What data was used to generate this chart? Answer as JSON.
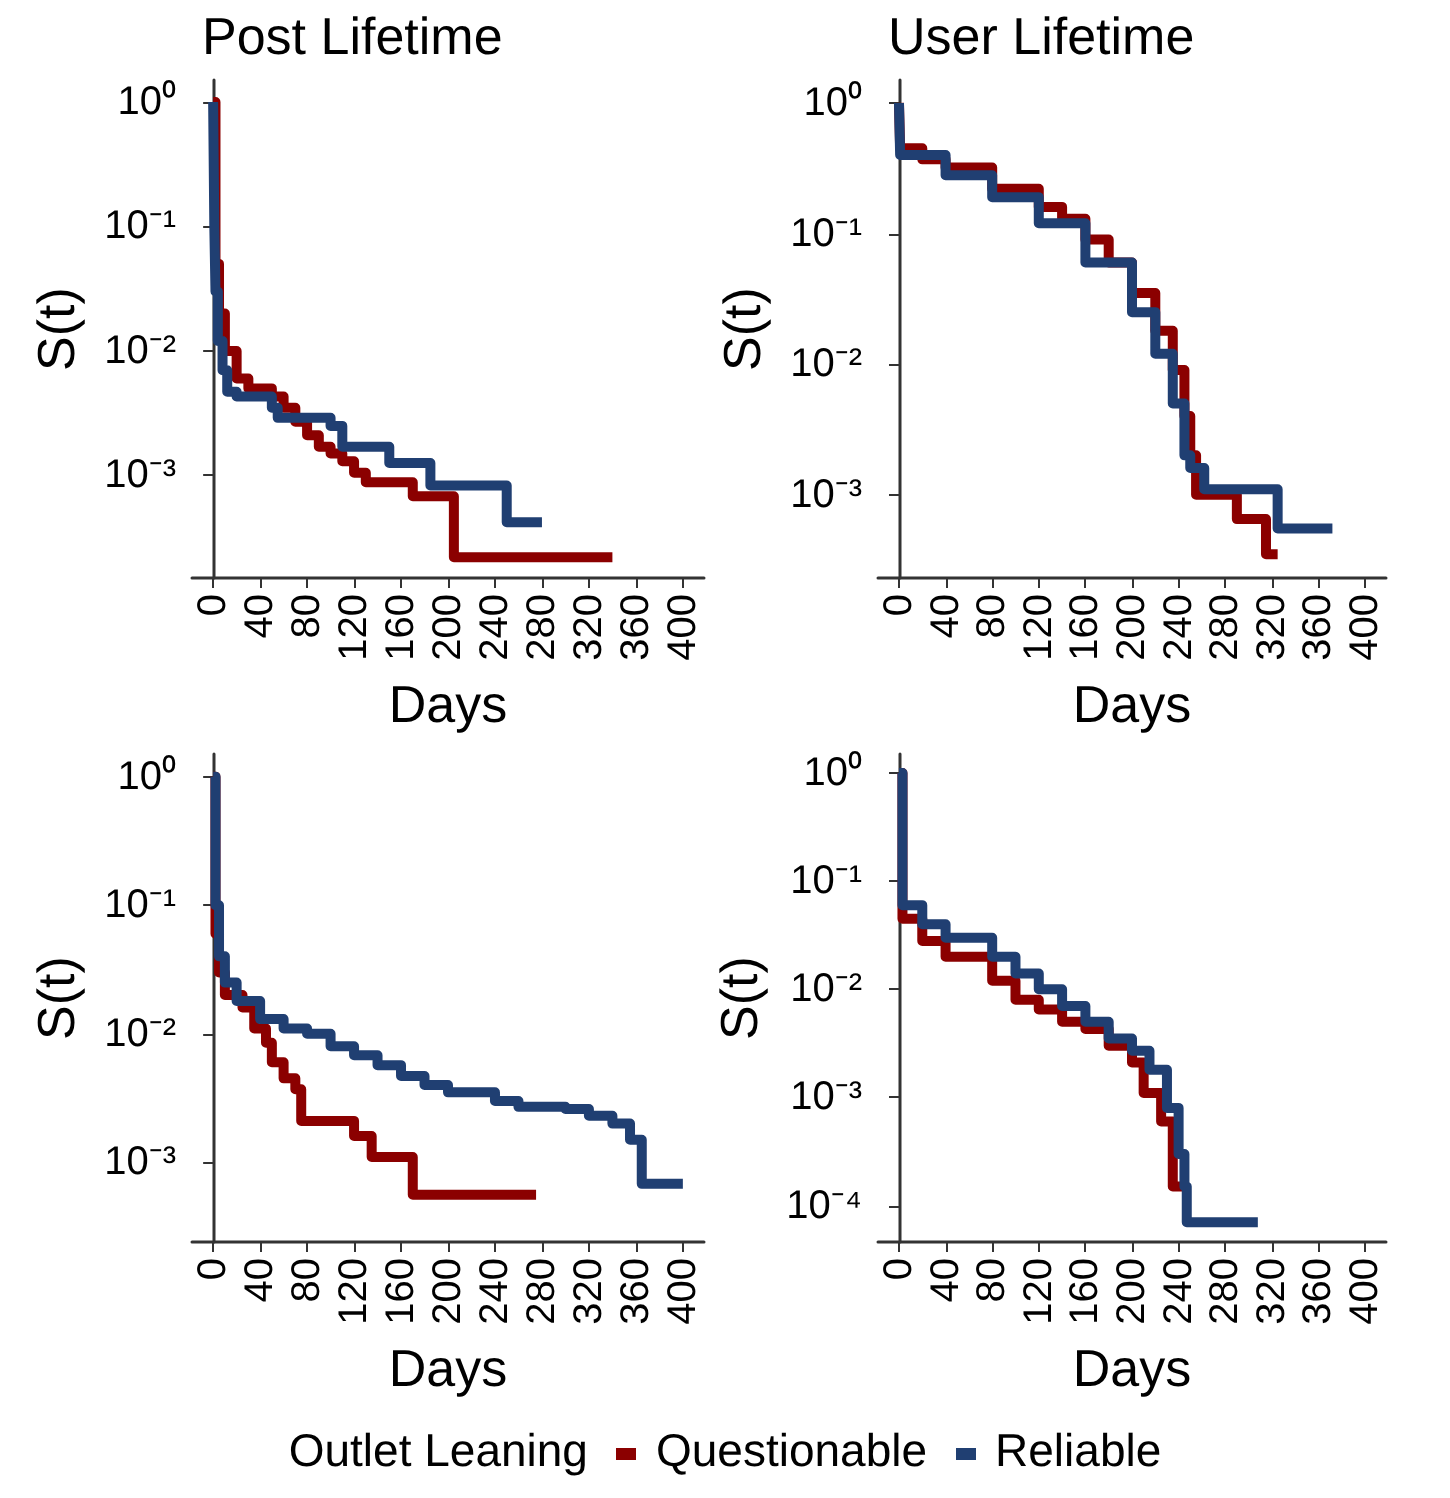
{
  "chart_data": [
    {
      "type": "step",
      "title": "Post Lifetime",
      "xlabel": "Days",
      "ylabel": "S(t)",
      "log": "y",
      "grid": false,
      "legend": "bottom",
      "legend_title": "Outlet Leaning",
      "xlim": [
        -18,
        418
      ],
      "xticks": [
        0,
        40,
        80,
        120,
        160,
        200,
        240,
        280,
        320,
        360,
        400
      ],
      "ylim": [
        0.00015,
        1.5
      ],
      "yticks": [
        {
          "value": 1,
          "label": "10⁰"
        },
        {
          "value": 0.1,
          "label": "10⁻¹"
        },
        {
          "value": 0.01,
          "label": "10⁻²"
        },
        {
          "value": 0.001,
          "label": "10⁻³"
        }
      ],
      "series": [
        {
          "name": "Questionable",
          "color": "#8b0000",
          "x": [
            0,
            2,
            5,
            10,
            20,
            30,
            50,
            60,
            70,
            80,
            90,
            100,
            110,
            120,
            130,
            170,
            205,
            340
          ],
          "values": [
            1,
            0.05,
            0.02,
            0.01,
            0.006,
            0.005,
            0.0043,
            0.0035,
            0.0027,
            0.0021,
            0.0017,
            0.0015,
            0.0013,
            0.00105,
            0.00088,
            0.00068,
            0.00022,
            0.00022
          ]
        },
        {
          "name": "Reliable",
          "color": "#203f72",
          "x": [
            0,
            1,
            2,
            4,
            8,
            12,
            20,
            50,
            55,
            100,
            110,
            150,
            185,
            250,
            280
          ],
          "values": [
            1,
            0.1,
            0.03,
            0.012,
            0.007,
            0.0047,
            0.0043,
            0.0035,
            0.0029,
            0.0025,
            0.0017,
            0.00126,
            0.00083,
            0.00042,
            0.00042
          ]
        }
      ]
    },
    {
      "type": "step",
      "title": "User Lifetime",
      "xlabel": "Days",
      "ylabel": "S(t)",
      "log": "y",
      "grid": false,
      "xlim": [
        -18,
        418
      ],
      "xticks": [
        0,
        40,
        80,
        120,
        160,
        200,
        240,
        280,
        320,
        360,
        400
      ],
      "ylim": [
        0.00023,
        1.5
      ],
      "yticks": [
        {
          "value": 1,
          "label": "10⁰"
        },
        {
          "value": 0.1,
          "label": "10⁻¹"
        },
        {
          "value": 0.01,
          "label": "10⁻²"
        },
        {
          "value": 0.001,
          "label": "10⁻³"
        }
      ],
      "series": [
        {
          "color": "#8b0000",
          "x": [
            0,
            1,
            20,
            40,
            80,
            120,
            140,
            160,
            180,
            200,
            220,
            235,
            245,
            250,
            255,
            290,
            315,
            325
          ],
          "values": [
            1,
            0.45,
            0.37,
            0.32,
            0.22,
            0.16,
            0.13,
            0.09,
            0.06,
            0.035,
            0.018,
            0.009,
            0.004,
            0.002,
            0.001,
            0.00065,
            0.00035,
            0.00035
          ]
        },
        {
          "color": "#203f72",
          "x": [
            0,
            1,
            40,
            80,
            120,
            160,
            200,
            220,
            235,
            245,
            250,
            262,
            325,
            372
          ],
          "values": [
            1,
            0.4,
            0.28,
            0.19,
            0.12,
            0.06,
            0.025,
            0.012,
            0.005,
            0.002,
            0.0016,
            0.0011,
            0.00055,
            0.00055
          ]
        }
      ]
    },
    {
      "type": "step",
      "xlabel": "Days",
      "ylabel": "S(t)",
      "log": "y",
      "grid": false,
      "xlim": [
        -18,
        418
      ],
      "xticks": [
        0,
        40,
        80,
        120,
        160,
        200,
        240,
        280,
        320,
        360,
        400
      ],
      "ylim": [
        0.00024,
        1.5
      ],
      "yticks": [
        {
          "value": 1,
          "label": "10⁰"
        },
        {
          "value": 0.1,
          "label": "10⁻¹"
        },
        {
          "value": 0.01,
          "label": "10⁻²"
        },
        {
          "value": 0.001,
          "label": "10⁻³"
        }
      ],
      "series": [
        {
          "color": "#8b0000",
          "x": [
            0,
            2,
            5,
            10,
            25,
            35,
            45,
            50,
            60,
            70,
            75,
            120,
            135,
            170,
            275
          ],
          "values": [
            1,
            0.06,
            0.03,
            0.02,
            0.016,
            0.011,
            0.0085,
            0.006,
            0.0045,
            0.0037,
            0.0021,
            0.0016,
            0.0011,
            0.00056,
            0.00056
          ]
        },
        {
          "color": "#203f72",
          "x": [
            0,
            2,
            5,
            10,
            20,
            40,
            60,
            80,
            100,
            120,
            140,
            160,
            180,
            200,
            240,
            260,
            300,
            320,
            340,
            355,
            365,
            400
          ],
          "values": [
            1,
            0.1,
            0.04,
            0.025,
            0.018,
            0.013,
            0.011,
            0.01,
            0.008,
            0.0068,
            0.0057,
            0.0047,
            0.004,
            0.0035,
            0.003,
            0.0027,
            0.0026,
            0.0023,
            0.002,
            0.0015,
            0.00068,
            0.00068
          ]
        }
      ]
    },
    {
      "type": "step",
      "xlabel": "Days",
      "ylabel": "S(t)",
      "log": "y",
      "grid": false,
      "xlim": [
        -18,
        418
      ],
      "xticks": [
        0,
        40,
        80,
        120,
        160,
        200,
        240,
        280,
        320,
        360,
        400
      ],
      "ylim": [
        4.6e-05,
        1.5
      ],
      "yticks": [
        {
          "value": 1,
          "label": "10⁰"
        },
        {
          "value": 0.1,
          "label": "10⁻¹"
        },
        {
          "value": 0.01,
          "label": "10⁻²"
        },
        {
          "value": 0.001,
          "label": "10⁻³"
        },
        {
          "value": 0.0001,
          "label": "10⁻⁴"
        }
      ],
      "series": [
        {
          "color": "#8b0000",
          "x": [
            0,
            3,
            20,
            40,
            80,
            100,
            120,
            140,
            160,
            180,
            200,
            210,
            225,
            235,
            245
          ],
          "values": [
            1,
            0.045,
            0.028,
            0.02,
            0.012,
            0.008,
            0.0065,
            0.005,
            0.0043,
            0.003,
            0.0021,
            0.0011,
            0.0006,
            0.00015,
            0.00015
          ]
        },
        {
          "color": "#203f72",
          "x": [
            0,
            3,
            20,
            40,
            80,
            100,
            120,
            140,
            160,
            180,
            200,
            215,
            230,
            240,
            245,
            247,
            308
          ],
          "values": [
            1,
            0.06,
            0.04,
            0.03,
            0.02,
            0.014,
            0.01,
            0.007,
            0.005,
            0.0035,
            0.0027,
            0.0018,
            0.0008,
            0.0003,
            0.00015,
            7e-05,
            7e-05
          ]
        }
      ]
    }
  ]
}
